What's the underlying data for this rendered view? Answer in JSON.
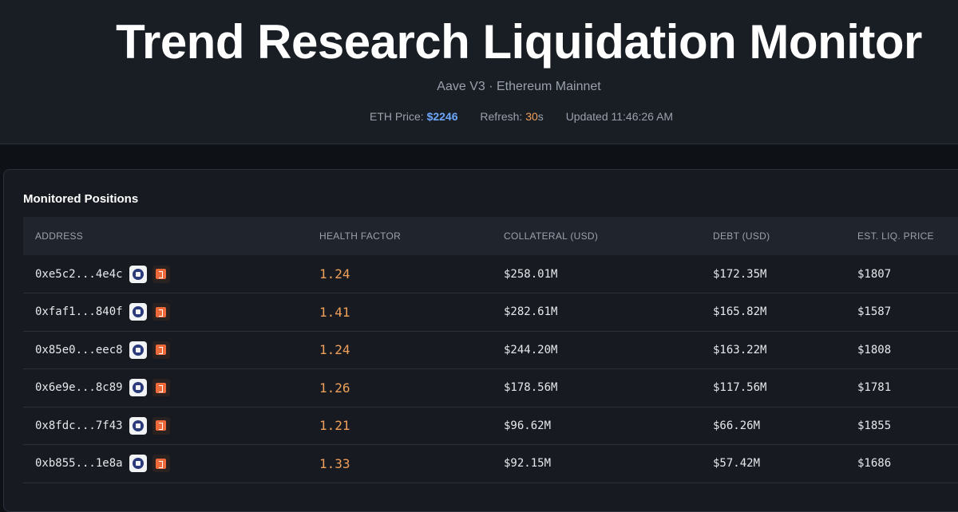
{
  "header": {
    "title": "Trend Research Liquidation Monitor",
    "subtitle": "Aave V3 · Ethereum Mainnet",
    "eth_price_label": "ETH Price:",
    "eth_price_value": "$2246",
    "refresh_label": "Refresh:",
    "refresh_value": "30",
    "refresh_unit": "s",
    "updated": "Updated 11:46:26 AM"
  },
  "panel": {
    "title": "Monitored Positions",
    "columns": [
      "ADDRESS",
      "HEALTH FACTOR",
      "COLLATERAL (USD)",
      "DEBT (USD)",
      "EST. LIQ. PRICE"
    ],
    "rows": [
      {
        "address": "0xe5c2...4e4c",
        "health": "1.24",
        "collateral": "$258.01M",
        "debt": "$172.35M",
        "liq": "$1807"
      },
      {
        "address": "0xfaf1...840f",
        "health": "1.41",
        "collateral": "$282.61M",
        "debt": "$165.82M",
        "liq": "$1587"
      },
      {
        "address": "0x85e0...eec8",
        "health": "1.24",
        "collateral": "$244.20M",
        "debt": "$163.22M",
        "liq": "$1808"
      },
      {
        "address": "0x6e9e...8c89",
        "health": "1.26",
        "collateral": "$178.56M",
        "debt": "$117.56M",
        "liq": "$1781"
      },
      {
        "address": "0x8fdc...7f43",
        "health": "1.21",
        "collateral": "$96.62M",
        "debt": "$66.26M",
        "liq": "$1855"
      },
      {
        "address": "0xb855...1e8a",
        "health": "1.33",
        "collateral": "$92.15M",
        "debt": "$57.42M",
        "liq": "$1686"
      }
    ]
  },
  "colors": {
    "accent_blue": "#6ea8fe",
    "accent_orange": "#f0a05a"
  },
  "icons": [
    "debank-icon",
    "arkham-icon"
  ]
}
